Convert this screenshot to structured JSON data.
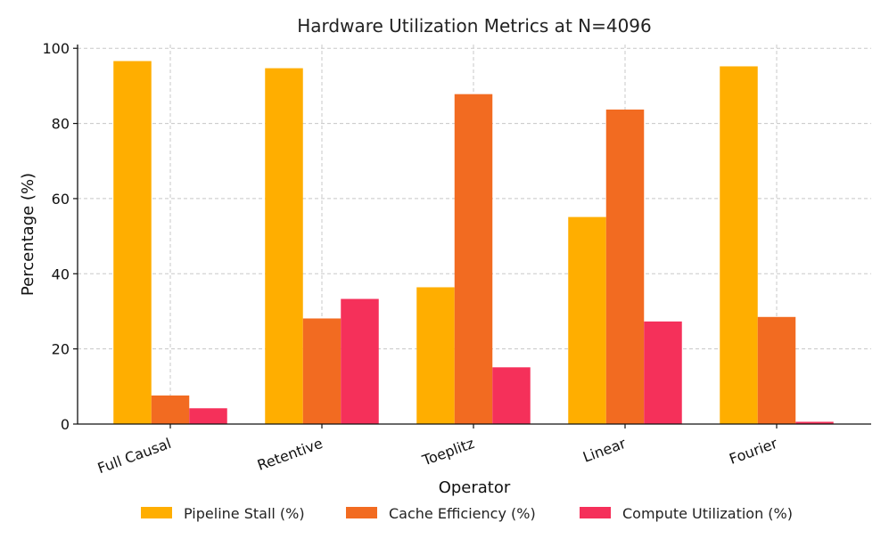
{
  "chart_data": {
    "type": "bar",
    "title": "Hardware Utilization Metrics at N=4096",
    "xlabel": "Operator",
    "ylabel": "Percentage (%)",
    "ylim": [
      0,
      101
    ],
    "yticks": [
      0,
      20,
      40,
      60,
      80,
      100
    ],
    "grid": true,
    "legend_position": "bottom",
    "categories": [
      "Full Causal",
      "Retentive",
      "Toeplitz",
      "Linear",
      "Fourier"
    ],
    "series": [
      {
        "name": "Pipeline Stall (%)",
        "color": "#FFAE00",
        "values": [
          96.6,
          94.7,
          36.4,
          55.1,
          95.2
        ]
      },
      {
        "name": "Cache Efficiency (%)",
        "color": "#F26B21",
        "values": [
          7.6,
          28.1,
          87.8,
          83.7,
          28.5
        ]
      },
      {
        "name": "Compute Utilization (%)",
        "color": "#F5305A",
        "values": [
          4.2,
          33.3,
          15.1,
          27.3,
          0.6
        ]
      }
    ]
  }
}
